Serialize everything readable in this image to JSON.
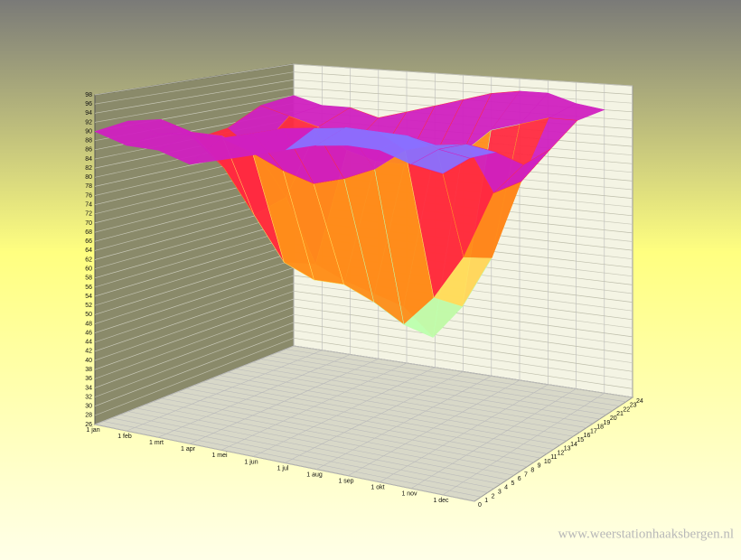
{
  "chart_data": {
    "type": "surface",
    "categories": [
      "1 jan",
      "1 feb",
      "1 mrt",
      "1 apr",
      "1 mei",
      "1 jun",
      "1 jul",
      "1 aug",
      "1 sep",
      "1 okt",
      "1 nov",
      "1 dec"
    ],
    "ylim": [
      0,
      24
    ],
    "yticks": [
      0,
      1,
      2,
      3,
      4,
      5,
      6,
      7,
      8,
      9,
      10,
      11,
      12,
      13,
      14,
      15,
      16,
      17,
      18,
      19,
      20,
      21,
      22,
      23,
      24
    ],
    "zlim": [
      26,
      98
    ],
    "zticks": [
      26,
      28,
      30,
      32,
      34,
      36,
      38,
      40,
      42,
      44,
      46,
      48,
      50,
      52,
      54,
      56,
      58,
      60,
      62,
      64,
      66,
      68,
      70,
      72,
      74,
      76,
      78,
      80,
      82,
      84,
      86,
      88,
      90,
      92,
      94,
      96,
      98
    ],
    "hours": [
      0,
      4,
      8,
      12,
      16,
      20,
      24
    ],
    "values": [
      [
        90,
        91,
        90,
        84,
        85,
        89,
        90
      ],
      [
        88,
        89,
        88,
        78,
        80,
        87,
        88
      ],
      [
        88,
        90,
        88,
        68,
        70,
        85,
        88
      ],
      [
        86,
        90,
        85,
        58,
        55,
        80,
        86
      ],
      [
        88,
        92,
        82,
        55,
        52,
        78,
        88
      ],
      [
        90,
        94,
        80,
        55,
        50,
        78,
        90
      ],
      [
        92,
        95,
        82,
        52,
        48,
        80,
        92
      ],
      [
        94,
        96,
        85,
        48,
        42,
        82,
        94
      ],
      [
        95,
        96,
        90,
        55,
        50,
        88,
        95
      ],
      [
        95,
        96,
        92,
        65,
        62,
        90,
        95
      ],
      [
        93,
        94,
        93,
        80,
        80,
        92,
        93
      ],
      [
        92,
        93,
        92,
        87,
        88,
        92,
        92
      ]
    ],
    "colorscale": [
      "#6f8cff",
      "#8fb0ff",
      "#bfffb0",
      "#ffe060",
      "#ff8c1a",
      "#ff2a40",
      "#d020c0",
      "#8a70ff"
    ],
    "source": "www.weerstationhaaksbergen.nl"
  }
}
